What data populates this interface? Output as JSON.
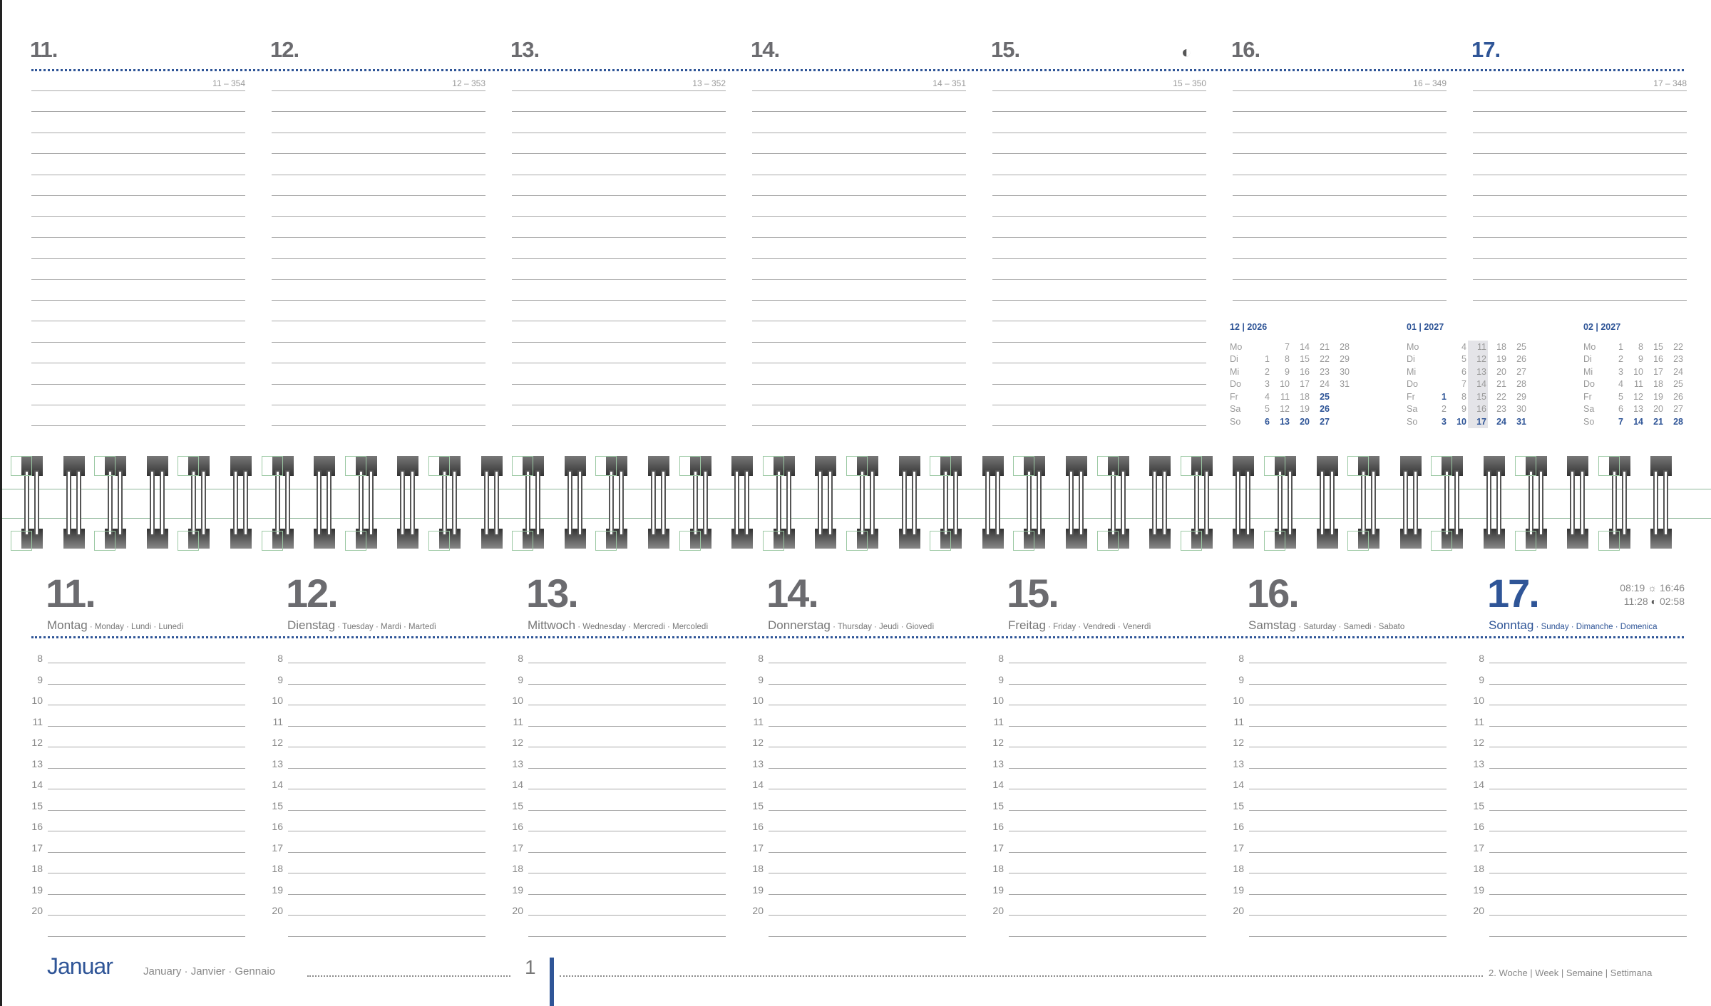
{
  "top_days": [
    {
      "num": "11.",
      "doy": "11 – 354"
    },
    {
      "num": "12.",
      "doy": "12 – 353"
    },
    {
      "num": "13.",
      "doy": "13 – 352"
    },
    {
      "num": "14.",
      "doy": "14 – 351"
    },
    {
      "num": "15.",
      "doy": "15 – 350",
      "moon": "half-moon-icon"
    },
    {
      "num": "16.",
      "doy": "16 – 349"
    },
    {
      "num": "17.",
      "doy": "17 – 348",
      "sunday": true
    }
  ],
  "mini_calendars": [
    {
      "title": "12 | 2026",
      "rows": [
        {
          "d": "Mo",
          "v": [
            "",
            "7",
            "14",
            "21",
            "28"
          ]
        },
        {
          "d": "Di",
          "v": [
            "1",
            "8",
            "15",
            "22",
            "29"
          ]
        },
        {
          "d": "Mi",
          "v": [
            "2",
            "9",
            "16",
            "23",
            "30"
          ]
        },
        {
          "d": "Do",
          "v": [
            "3",
            "10",
            "17",
            "24",
            "31"
          ]
        },
        {
          "d": "Fr",
          "v": [
            "4",
            "11",
            "18",
            "25",
            ""
          ],
          "bold": [
            3
          ]
        },
        {
          "d": "Sa",
          "v": [
            "5",
            "12",
            "19",
            "26",
            ""
          ],
          "bold": [
            3
          ]
        },
        {
          "d": "So",
          "v": [
            "6",
            "13",
            "20",
            "27",
            ""
          ],
          "bold": [
            0,
            1,
            2,
            3
          ]
        }
      ]
    },
    {
      "title": "01 | 2027",
      "highlight_col": 2,
      "rows": [
        {
          "d": "Mo",
          "v": [
            "",
            "4",
            "11",
            "18",
            "25"
          ]
        },
        {
          "d": "Di",
          "v": [
            "",
            "5",
            "12",
            "19",
            "26"
          ]
        },
        {
          "d": "Mi",
          "v": [
            "",
            "6",
            "13",
            "20",
            "27"
          ]
        },
        {
          "d": "Do",
          "v": [
            "",
            "7",
            "14",
            "21",
            "28"
          ]
        },
        {
          "d": "Fr",
          "v": [
            "1",
            "8",
            "15",
            "22",
            "29"
          ],
          "bold": [
            0
          ]
        },
        {
          "d": "Sa",
          "v": [
            "2",
            "9",
            "16",
            "23",
            "30"
          ]
        },
        {
          "d": "So",
          "v": [
            "3",
            "10",
            "17",
            "24",
            "31"
          ],
          "bold": [
            0,
            1,
            2,
            3,
            4
          ]
        }
      ]
    },
    {
      "title": "02 | 2027",
      "rows": [
        {
          "d": "Mo",
          "v": [
            "1",
            "8",
            "15",
            "22"
          ]
        },
        {
          "d": "Di",
          "v": [
            "2",
            "9",
            "16",
            "23"
          ]
        },
        {
          "d": "Mi",
          "v": [
            "3",
            "10",
            "17",
            "24"
          ]
        },
        {
          "d": "Do",
          "v": [
            "4",
            "11",
            "18",
            "25"
          ]
        },
        {
          "d": "Fr",
          "v": [
            "5",
            "12",
            "19",
            "26"
          ]
        },
        {
          "d": "Sa",
          "v": [
            "6",
            "13",
            "20",
            "27"
          ]
        },
        {
          "d": "So",
          "v": [
            "7",
            "14",
            "21",
            "28"
          ],
          "bold": [
            0,
            1,
            2,
            3
          ]
        }
      ]
    }
  ],
  "bottom_days": [
    {
      "num": "11.",
      "de": "Montag",
      "other": " · Monday · Lundi · Lunedì"
    },
    {
      "num": "12.",
      "de": "Dienstag",
      "other": " · Tuesday · Mardi · Martedì"
    },
    {
      "num": "13.",
      "de": "Mittwoch",
      "other": " · Wednesday · Mercredi · Mercoledì"
    },
    {
      "num": "14.",
      "de": "Donnerstag",
      "other": " · Thursday · Jeudi · Giovedì"
    },
    {
      "num": "15.",
      "de": "Freitag",
      "other": " · Friday · Vendredi · Venerdì"
    },
    {
      "num": "16.",
      "de": "Samstag",
      "other": " · Saturday · Samedi · Sabato"
    },
    {
      "num": "17.",
      "de": "Sonntag",
      "other": " · Sunday · Dimanche · Domenica",
      "sunday": true
    }
  ],
  "hours": [
    "8",
    "9",
    "10",
    "11",
    "12",
    "13",
    "14",
    "15",
    "16",
    "17",
    "18",
    "19",
    "20"
  ],
  "sun_moon": {
    "sunrise": "08:19",
    "sunset": "16:46",
    "moonrise": "11:28",
    "moonset": "02:58"
  },
  "footer": {
    "month": "Januar",
    "month_other": "January · Janvier · Gennaio",
    "month_number": "1",
    "week": "2. Woche | Week | Semaine | Settimana"
  },
  "colors": {
    "accent": "#2f5597",
    "text": "#6b6b6f",
    "rule": "#a8a8a8"
  }
}
